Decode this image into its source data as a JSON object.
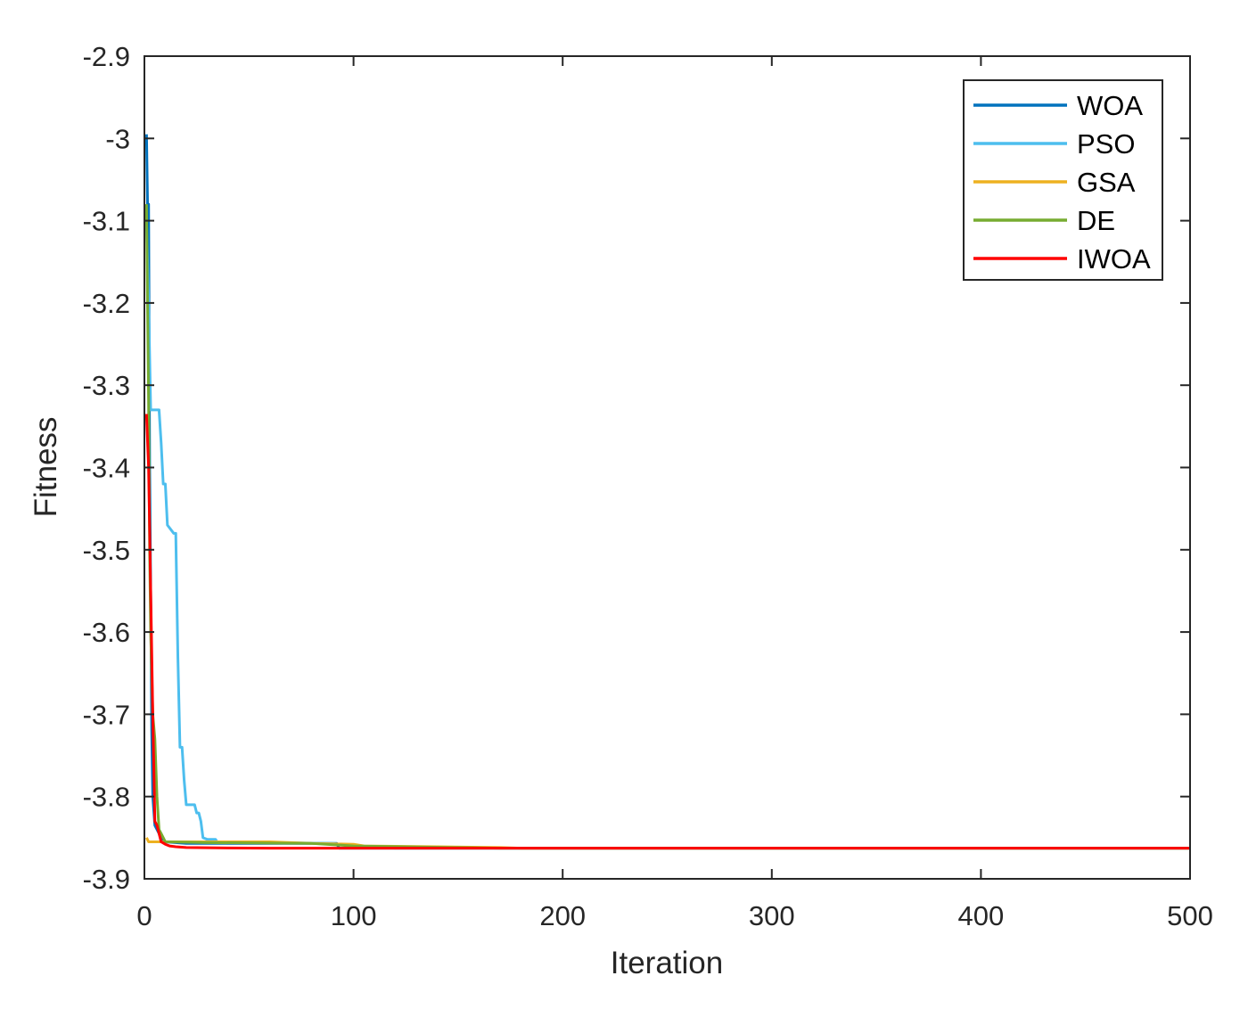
{
  "chart_data": {
    "type": "line",
    "title": "",
    "xlabel": "Iteration",
    "ylabel": "Fitness",
    "xlim": [
      0,
      500
    ],
    "ylim": [
      -3.9,
      -2.9
    ],
    "xticks": [
      0,
      100,
      200,
      300,
      400,
      500
    ],
    "yticks": [
      -3.9,
      -3.8,
      -3.7,
      -3.6,
      -3.5,
      -3.4,
      -3.3,
      -3.2,
      -3.1,
      -3,
      -2.9
    ],
    "xtick_labels": [
      "0",
      "100",
      "200",
      "300",
      "400",
      "500"
    ],
    "ytick_labels": [
      "-3.9",
      "-3.8",
      "-3.7",
      "-3.6",
      "-3.5",
      "-3.4",
      "-3.3",
      "-3.2",
      "-3.1",
      "-3",
      "-2.9"
    ],
    "grid": false,
    "legend_position": "top-right",
    "series": [
      {
        "name": "WOA",
        "color": "#0072BD",
        "points": [
          [
            1,
            -2.995
          ],
          [
            1.5,
            -3.08
          ],
          [
            2,
            -3.08
          ],
          [
            2.5,
            -3.4
          ],
          [
            3,
            -3.55
          ],
          [
            3.5,
            -3.72
          ],
          [
            4,
            -3.8
          ],
          [
            5,
            -3.835
          ],
          [
            6,
            -3.84
          ],
          [
            7,
            -3.845
          ],
          [
            8,
            -3.85
          ],
          [
            10,
            -3.855
          ],
          [
            20,
            -3.857
          ],
          [
            40,
            -3.857
          ],
          [
            60,
            -3.857
          ],
          [
            80,
            -3.857
          ],
          [
            92,
            -3.857
          ],
          [
            93,
            -3.8628
          ],
          [
            500,
            -3.8628
          ]
        ]
      },
      {
        "name": "PSO",
        "color": "#4DBEEE",
        "points": [
          [
            1,
            -3.1
          ],
          [
            2,
            -3.2
          ],
          [
            3,
            -3.33
          ],
          [
            7,
            -3.33
          ],
          [
            8,
            -3.37
          ],
          [
            9,
            -3.42
          ],
          [
            10,
            -3.42
          ],
          [
            11,
            -3.47
          ],
          [
            14,
            -3.48
          ],
          [
            15,
            -3.48
          ],
          [
            16,
            -3.63
          ],
          [
            17,
            -3.74
          ],
          [
            18,
            -3.74
          ],
          [
            19,
            -3.78
          ],
          [
            20,
            -3.81
          ],
          [
            24,
            -3.81
          ],
          [
            25,
            -3.82
          ],
          [
            26,
            -3.82
          ],
          [
            27,
            -3.83
          ],
          [
            28,
            -3.85
          ],
          [
            30,
            -3.852
          ],
          [
            34,
            -3.852
          ],
          [
            35,
            -3.856
          ],
          [
            60,
            -3.856
          ],
          [
            90,
            -3.857
          ],
          [
            100,
            -3.86
          ],
          [
            120,
            -3.8628
          ],
          [
            500,
            -3.8628
          ]
        ]
      },
      {
        "name": "GSA",
        "color": "#EDB120",
        "points": [
          [
            1,
            -3.85
          ],
          [
            2,
            -3.855
          ],
          [
            8,
            -3.855
          ],
          [
            10,
            -3.855
          ],
          [
            60,
            -3.855
          ],
          [
            80,
            -3.857
          ],
          [
            100,
            -3.858
          ],
          [
            105,
            -3.86
          ],
          [
            140,
            -3.861
          ],
          [
            170,
            -3.862
          ],
          [
            180,
            -3.8628
          ],
          [
            500,
            -3.8628
          ]
        ]
      },
      {
        "name": "DE",
        "color": "#77AC30",
        "points": [
          [
            1,
            -3.08
          ],
          [
            1.5,
            -3.2
          ],
          [
            2,
            -3.32
          ],
          [
            2.5,
            -3.5
          ],
          [
            3,
            -3.6
          ],
          [
            4,
            -3.7
          ],
          [
            5,
            -3.73
          ],
          [
            6,
            -3.8
          ],
          [
            7,
            -3.84
          ],
          [
            8,
            -3.845
          ],
          [
            9,
            -3.85
          ],
          [
            10,
            -3.855
          ],
          [
            30,
            -3.856
          ],
          [
            80,
            -3.857
          ],
          [
            100,
            -3.86
          ],
          [
            150,
            -3.862
          ],
          [
            170,
            -3.8628
          ],
          [
            500,
            -3.8628
          ]
        ]
      },
      {
        "name": "IWOA",
        "color": "#FF0000",
        "points": [
          [
            1,
            -3.335
          ],
          [
            2,
            -3.4
          ],
          [
            3,
            -3.55
          ],
          [
            4,
            -3.7
          ],
          [
            5,
            -3.83
          ],
          [
            6,
            -3.835
          ],
          [
            7,
            -3.845
          ],
          [
            8,
            -3.855
          ],
          [
            10,
            -3.858
          ],
          [
            12,
            -3.86
          ],
          [
            15,
            -3.861
          ],
          [
            20,
            -3.862
          ],
          [
            40,
            -3.8625
          ],
          [
            60,
            -3.8628
          ],
          [
            500,
            -3.8628
          ]
        ]
      }
    ]
  }
}
